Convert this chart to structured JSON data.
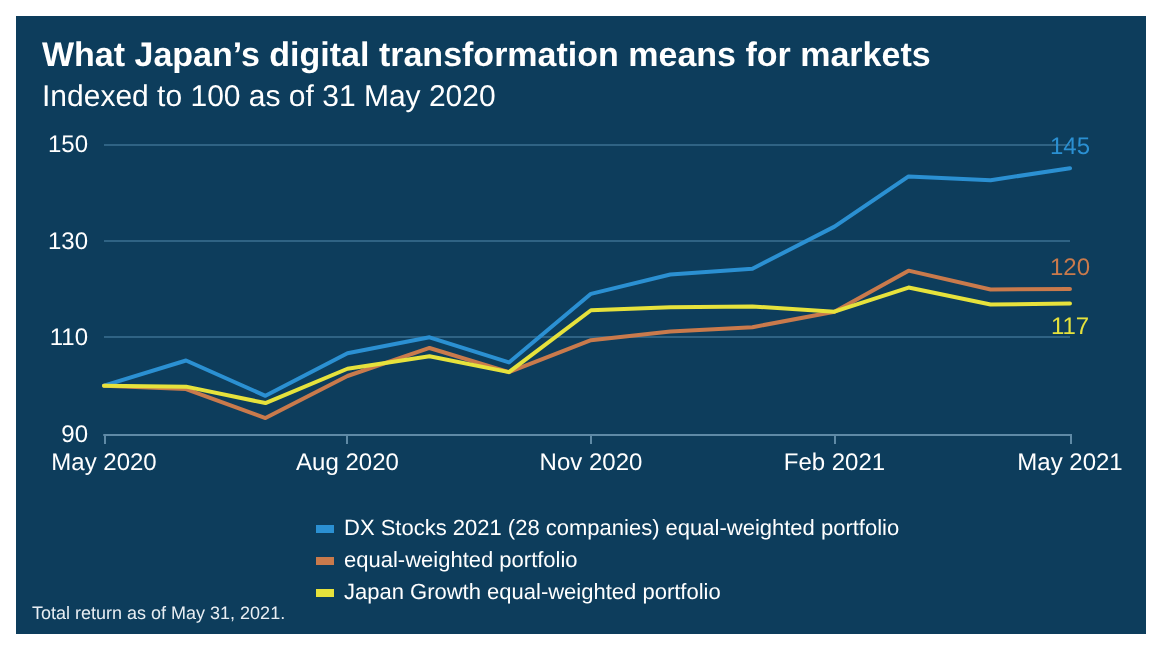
{
  "chart_data": {
    "type": "line",
    "title": "What Japan’s digital transformation means for markets",
    "subtitle": "Indexed to 100 as of 31 May 2020",
    "x": [
      "2020-05",
      "2020-06",
      "2020-07",
      "2020-08",
      "2020-09",
      "2020-10",
      "2020-11",
      "2020-12",
      "2021-01",
      "2021-02",
      "2021-03",
      "2021-04",
      "2021-05"
    ],
    "series": [
      {
        "name": "DX Stocks 2021 (28 companies) equal-weighted portfolio",
        "color": "#2b90d2",
        "values": [
          100,
          105.2,
          97.9,
          106.7,
          110,
          104.8,
          119,
          123,
          124.2,
          132.9,
          143.3,
          142.5,
          145
        ],
        "value_labels": [
          null,
          null,
          null,
          null,
          null,
          null,
          null,
          null,
          null,
          null,
          null,
          null,
          "145"
        ]
      },
      {
        "name": "equal-weighted portfolio",
        "color": "#c97a4c",
        "values": [
          100,
          99.3,
          93.3,
          102,
          107.8,
          102.8,
          109.4,
          111.2,
          112.1,
          115.3,
          123.8,
          119.9,
          120
        ],
        "value_labels": [
          null,
          null,
          null,
          null,
          null,
          null,
          null,
          null,
          null,
          null,
          null,
          null,
          "120"
        ]
      },
      {
        "name": "Japan Growth equal-weighted portfolio",
        "color": "#e6e23c",
        "values": [
          100,
          99.8,
          96.4,
          103.5,
          106.1,
          102.8,
          115.6,
          116.2,
          116.4,
          115.3,
          120.3,
          116.8,
          117
        ],
        "value_labels": [
          null,
          null,
          null,
          null,
          null,
          null,
          null,
          null,
          null,
          null,
          null,
          null,
          "117"
        ]
      }
    ],
    "xlim": [
      "2020-05",
      "2021-05"
    ],
    "xticks": [
      {
        "value": "2020-05",
        "label": "May 2020"
      },
      {
        "value": "2020-08",
        "label": "Aug 2020"
      },
      {
        "value": "2020-11",
        "label": "Nov 2020"
      },
      {
        "value": "2021-02",
        "label": "Feb 2021"
      },
      {
        "value": "2021-05",
        "label": "May 2021"
      }
    ],
    "ylim": [
      90,
      150
    ],
    "yticks": [
      90,
      110,
      130,
      150
    ],
    "grid": "y",
    "legend": "bottom",
    "marker": "none",
    "line_style": "solid",
    "annotations": [
      "Total return as of May 31, 2021."
    ]
  }
}
